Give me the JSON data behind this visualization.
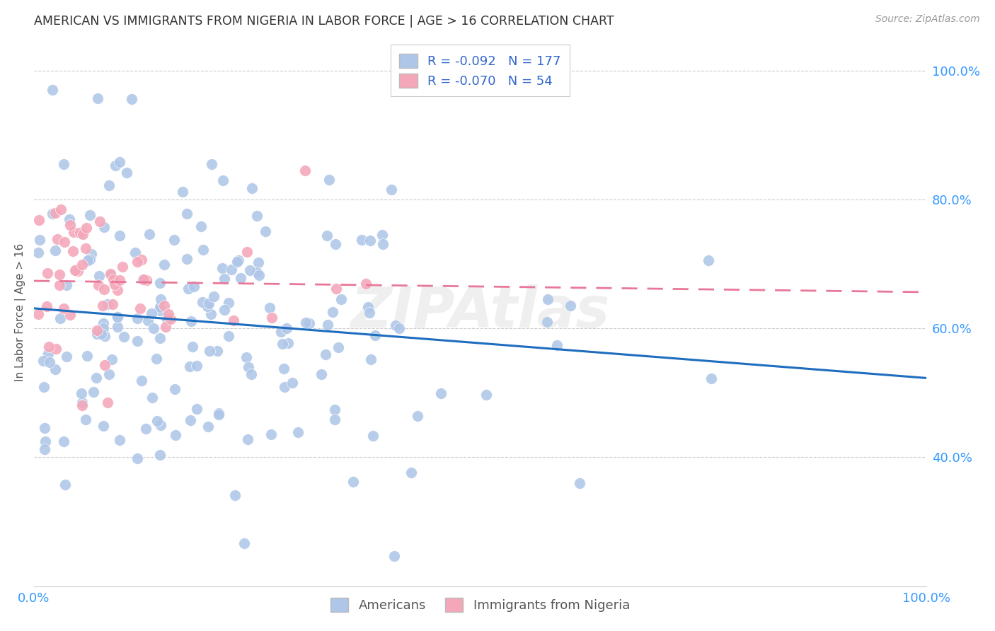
{
  "title": "AMERICAN VS IMMIGRANTS FROM NIGERIA IN LABOR FORCE | AGE > 16 CORRELATION CHART",
  "source": "Source: ZipAtlas.com",
  "xlabel": "",
  "ylabel": "In Labor Force | Age > 16",
  "xlim": [
    0.0,
    1.0
  ],
  "ylim": [
    0.2,
    1.05
  ],
  "x_ticks": [
    0.0,
    0.25,
    0.5,
    0.75,
    1.0
  ],
  "y_ticks_right": [
    0.4,
    0.6,
    0.8,
    1.0
  ],
  "legend_blue_label": "R = -0.092   N = 177",
  "legend_pink_label": "R = -0.070   N = 54",
  "watermark": "ZIPAtlas",
  "american_color": "#aec6e8",
  "nigeria_color": "#f4a7b9",
  "trendline_american_color": "#1f6dbf",
  "trendline_nigeria_color": "#e87899",
  "background_color": "#ffffff",
  "grid_color": "#cccccc",
  "americans_label": "Americans",
  "nigeria_label": "Immigrants from Nigeria",
  "american_N": 177,
  "nigeria_N": 54,
  "american_seed": 42,
  "nigeria_seed": 99
}
